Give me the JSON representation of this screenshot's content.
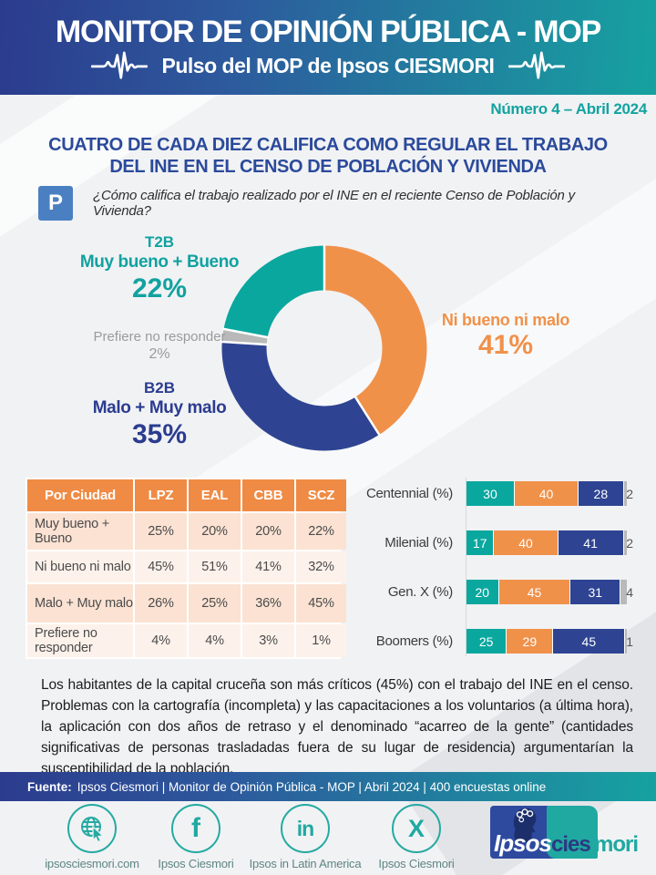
{
  "header": {
    "title": "MONITOR DE OPINIÓN PÚBLICA - MOP",
    "subtitle": "Pulso del MOP de Ipsos CIESMORI"
  },
  "issue_badge": "Número 4 – Abril 2024",
  "headline": {
    "line1": "CUATRO DE CADA DIEZ CALIFICA COMO REGULAR EL TRABAJO",
    "line2": "DEL INE EN EL CENSO DE POBLACIÓN Y VIVIENDA"
  },
  "question": {
    "badge": "P",
    "text": "¿Cómo califica el trabajo realizado por el INE en el reciente Censo de Población y Vivienda?"
  },
  "donut_labels": {
    "t2b": {
      "title": "T2B",
      "subtitle": "Muy bueno + Bueno",
      "value": "22%"
    },
    "no_answer": {
      "title": "Prefiere no responder",
      "value": "2%"
    },
    "b2b": {
      "title": "B2B",
      "subtitle": "Malo + Muy malo",
      "value": "35%"
    },
    "neutral": {
      "title": "Ni bueno ni malo",
      "value": "41%"
    }
  },
  "chart_data": [
    {
      "type": "pie",
      "variant": "donut",
      "start_angle": "top, clockwise",
      "slices": [
        {
          "key": "neutral",
          "label": "Ni bueno ni malo",
          "value": 41,
          "color": "#f0914a"
        },
        {
          "key": "b2b",
          "label": "B2B Malo + Muy malo",
          "value": 35,
          "color": "#2e4492"
        },
        {
          "key": "no-answer",
          "label": "Prefiere no responder",
          "value": 2,
          "color": "#b9b9b9"
        },
        {
          "key": "t2b",
          "label": "T2B Muy bueno + Bueno",
          "value": 22,
          "color": "#0aa79f"
        }
      ]
    },
    {
      "type": "bar",
      "orientation": "horizontal",
      "stacked": true,
      "xlim": [
        0,
        100
      ],
      "categories": [
        "Centennial (%)",
        "Milenial (%)",
        "Gen. X (%)",
        "Boomers (%)"
      ],
      "series": [
        {
          "name": "Muy bueno + Bueno",
          "color": "#0aa79f",
          "values": [
            30,
            17,
            20,
            25
          ]
        },
        {
          "name": "Ni bueno ni malo",
          "color": "#f0914a",
          "values": [
            40,
            40,
            45,
            29
          ]
        },
        {
          "name": "Malo + Muy malo",
          "color": "#2e4492",
          "values": [
            28,
            41,
            31,
            45
          ]
        },
        {
          "name": "Prefiere no responder",
          "color": "#b9b9b9",
          "values": [
            2,
            2,
            4,
            1
          ]
        }
      ]
    }
  ],
  "city_table": {
    "headers": [
      "Por Ciudad",
      "LPZ",
      "EAL",
      "CBB",
      "SCZ"
    ],
    "rows": [
      {
        "label": "Muy bueno + Bueno",
        "values": [
          "25%",
          "20%",
          "20%",
          "22%"
        ]
      },
      {
        "label": "Ni bueno ni malo",
        "values": [
          "45%",
          "51%",
          "41%",
          "32%"
        ]
      },
      {
        "label": "Malo + Muy malo",
        "values": [
          "26%",
          "25%",
          "36%",
          "45%"
        ]
      },
      {
        "label": "Prefiere no responder",
        "values": [
          "4%",
          "4%",
          "3%",
          "1%"
        ]
      }
    ]
  },
  "analysis_paragraph": "Los habitantes de la capital cruceña son más críticos (45%) con el trabajo del INE en el censo. Problemas con la cartografía (incompleta) y las capacitaciones a los voluntarios (a última hora), la aplicación con dos años de retraso y el denominado “acarreo de la gente” (cantidades significativas de personas trasladadas fuera de su lugar de residencia) argumentarían la susceptibilidad de la población.",
  "source_bar": {
    "label": "Fuente:",
    "text": "Ipsos Ciesmori | Monitor de Opinión Pública - MOP | Abril 2024 | 400 encuestas online"
  },
  "social": {
    "items": [
      {
        "icon": "globe-icon",
        "label": "ipsosciesmori.com"
      },
      {
        "icon": "facebook-icon",
        "glyph": "f",
        "label": "Ipsos Ciesmori"
      },
      {
        "icon": "linkedin-icon",
        "glyph": "in",
        "label": "Ipsos in Latin America"
      },
      {
        "icon": "x-icon",
        "glyph": "X",
        "label": "Ipsos Ciesmori"
      }
    ],
    "logo": {
      "ipsos": "Ipsos",
      "cies": "cies",
      "mori": "mori"
    }
  },
  "colors": {
    "teal": "#0aa79f",
    "orange": "#f0914a",
    "blue": "#2e4492",
    "gray": "#b9b9b9",
    "header_gradient_start": "#2c3b8d",
    "header_gradient_end": "#16a2a0",
    "headline_blue": "#2b4a9b",
    "question_badge_blue": "#4a80c1",
    "issue_teal": "#13a3a0",
    "table_header_orange": "#ef8b45",
    "table_row_dark": "#fbe2d3",
    "table_row_light": "#fdf2eb"
  }
}
